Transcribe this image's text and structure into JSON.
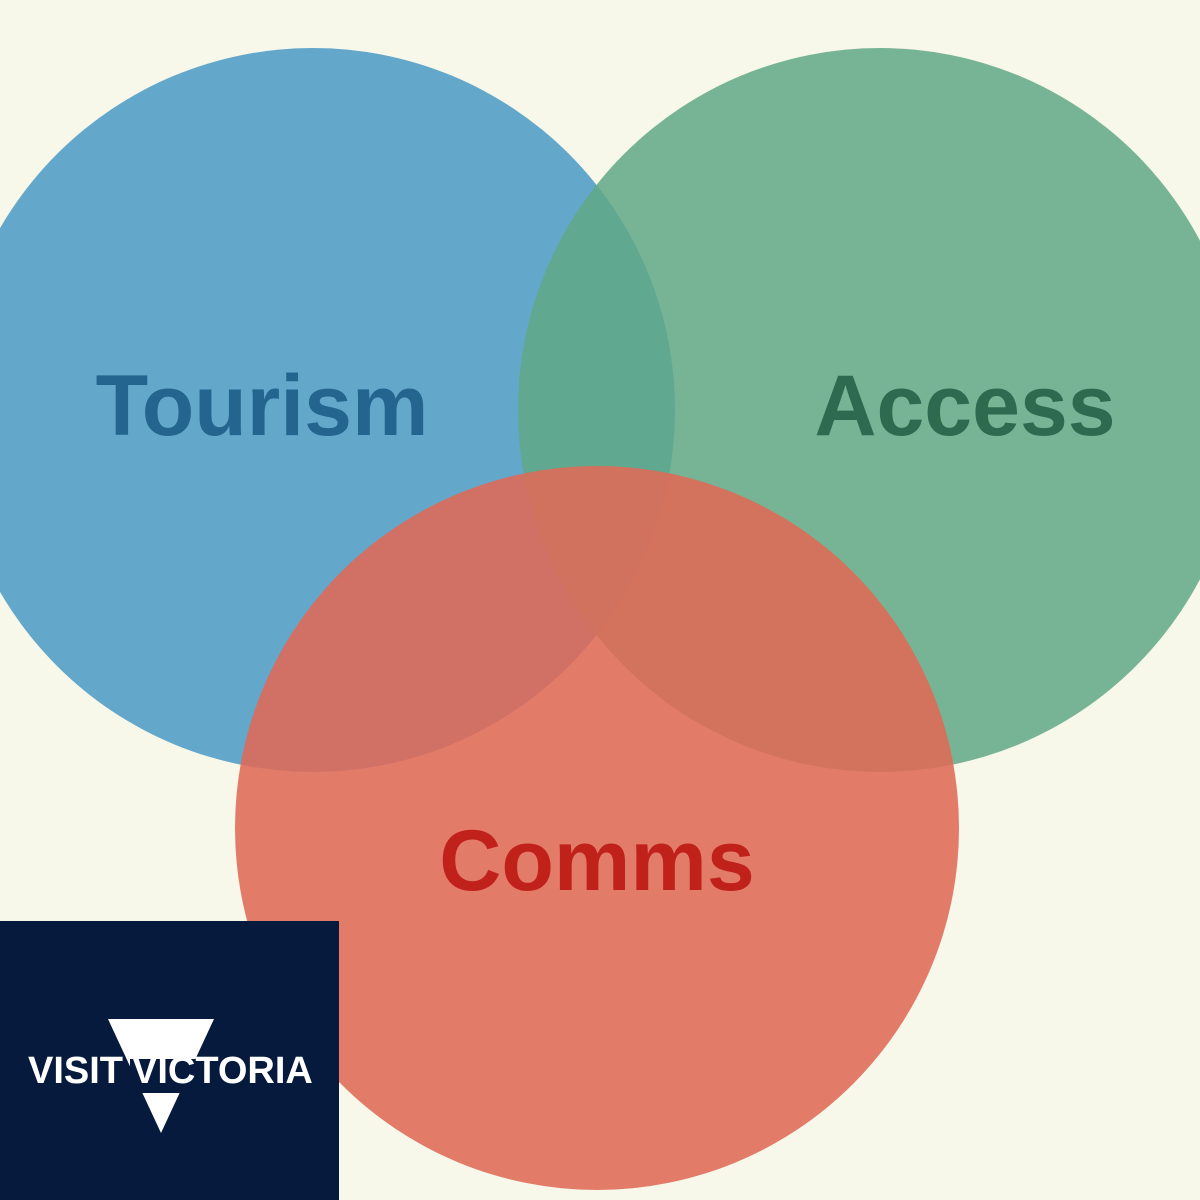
{
  "venn": {
    "sets": [
      {
        "label": "Tourism",
        "fill": "#4f9cc5",
        "text_color": "#246590"
      },
      {
        "label": "Access",
        "fill": "#5fa886",
        "text_color": "#2e6a50"
      },
      {
        "label": "Comms",
        "fill": "#e06a57",
        "text_color": "#c0221b"
      }
    ],
    "background": "#f7f7ea"
  },
  "logo": {
    "text_left": "VISIT",
    "text_right": "VICTORIA",
    "background": "#061a3d",
    "text_color": "#ffffff"
  }
}
